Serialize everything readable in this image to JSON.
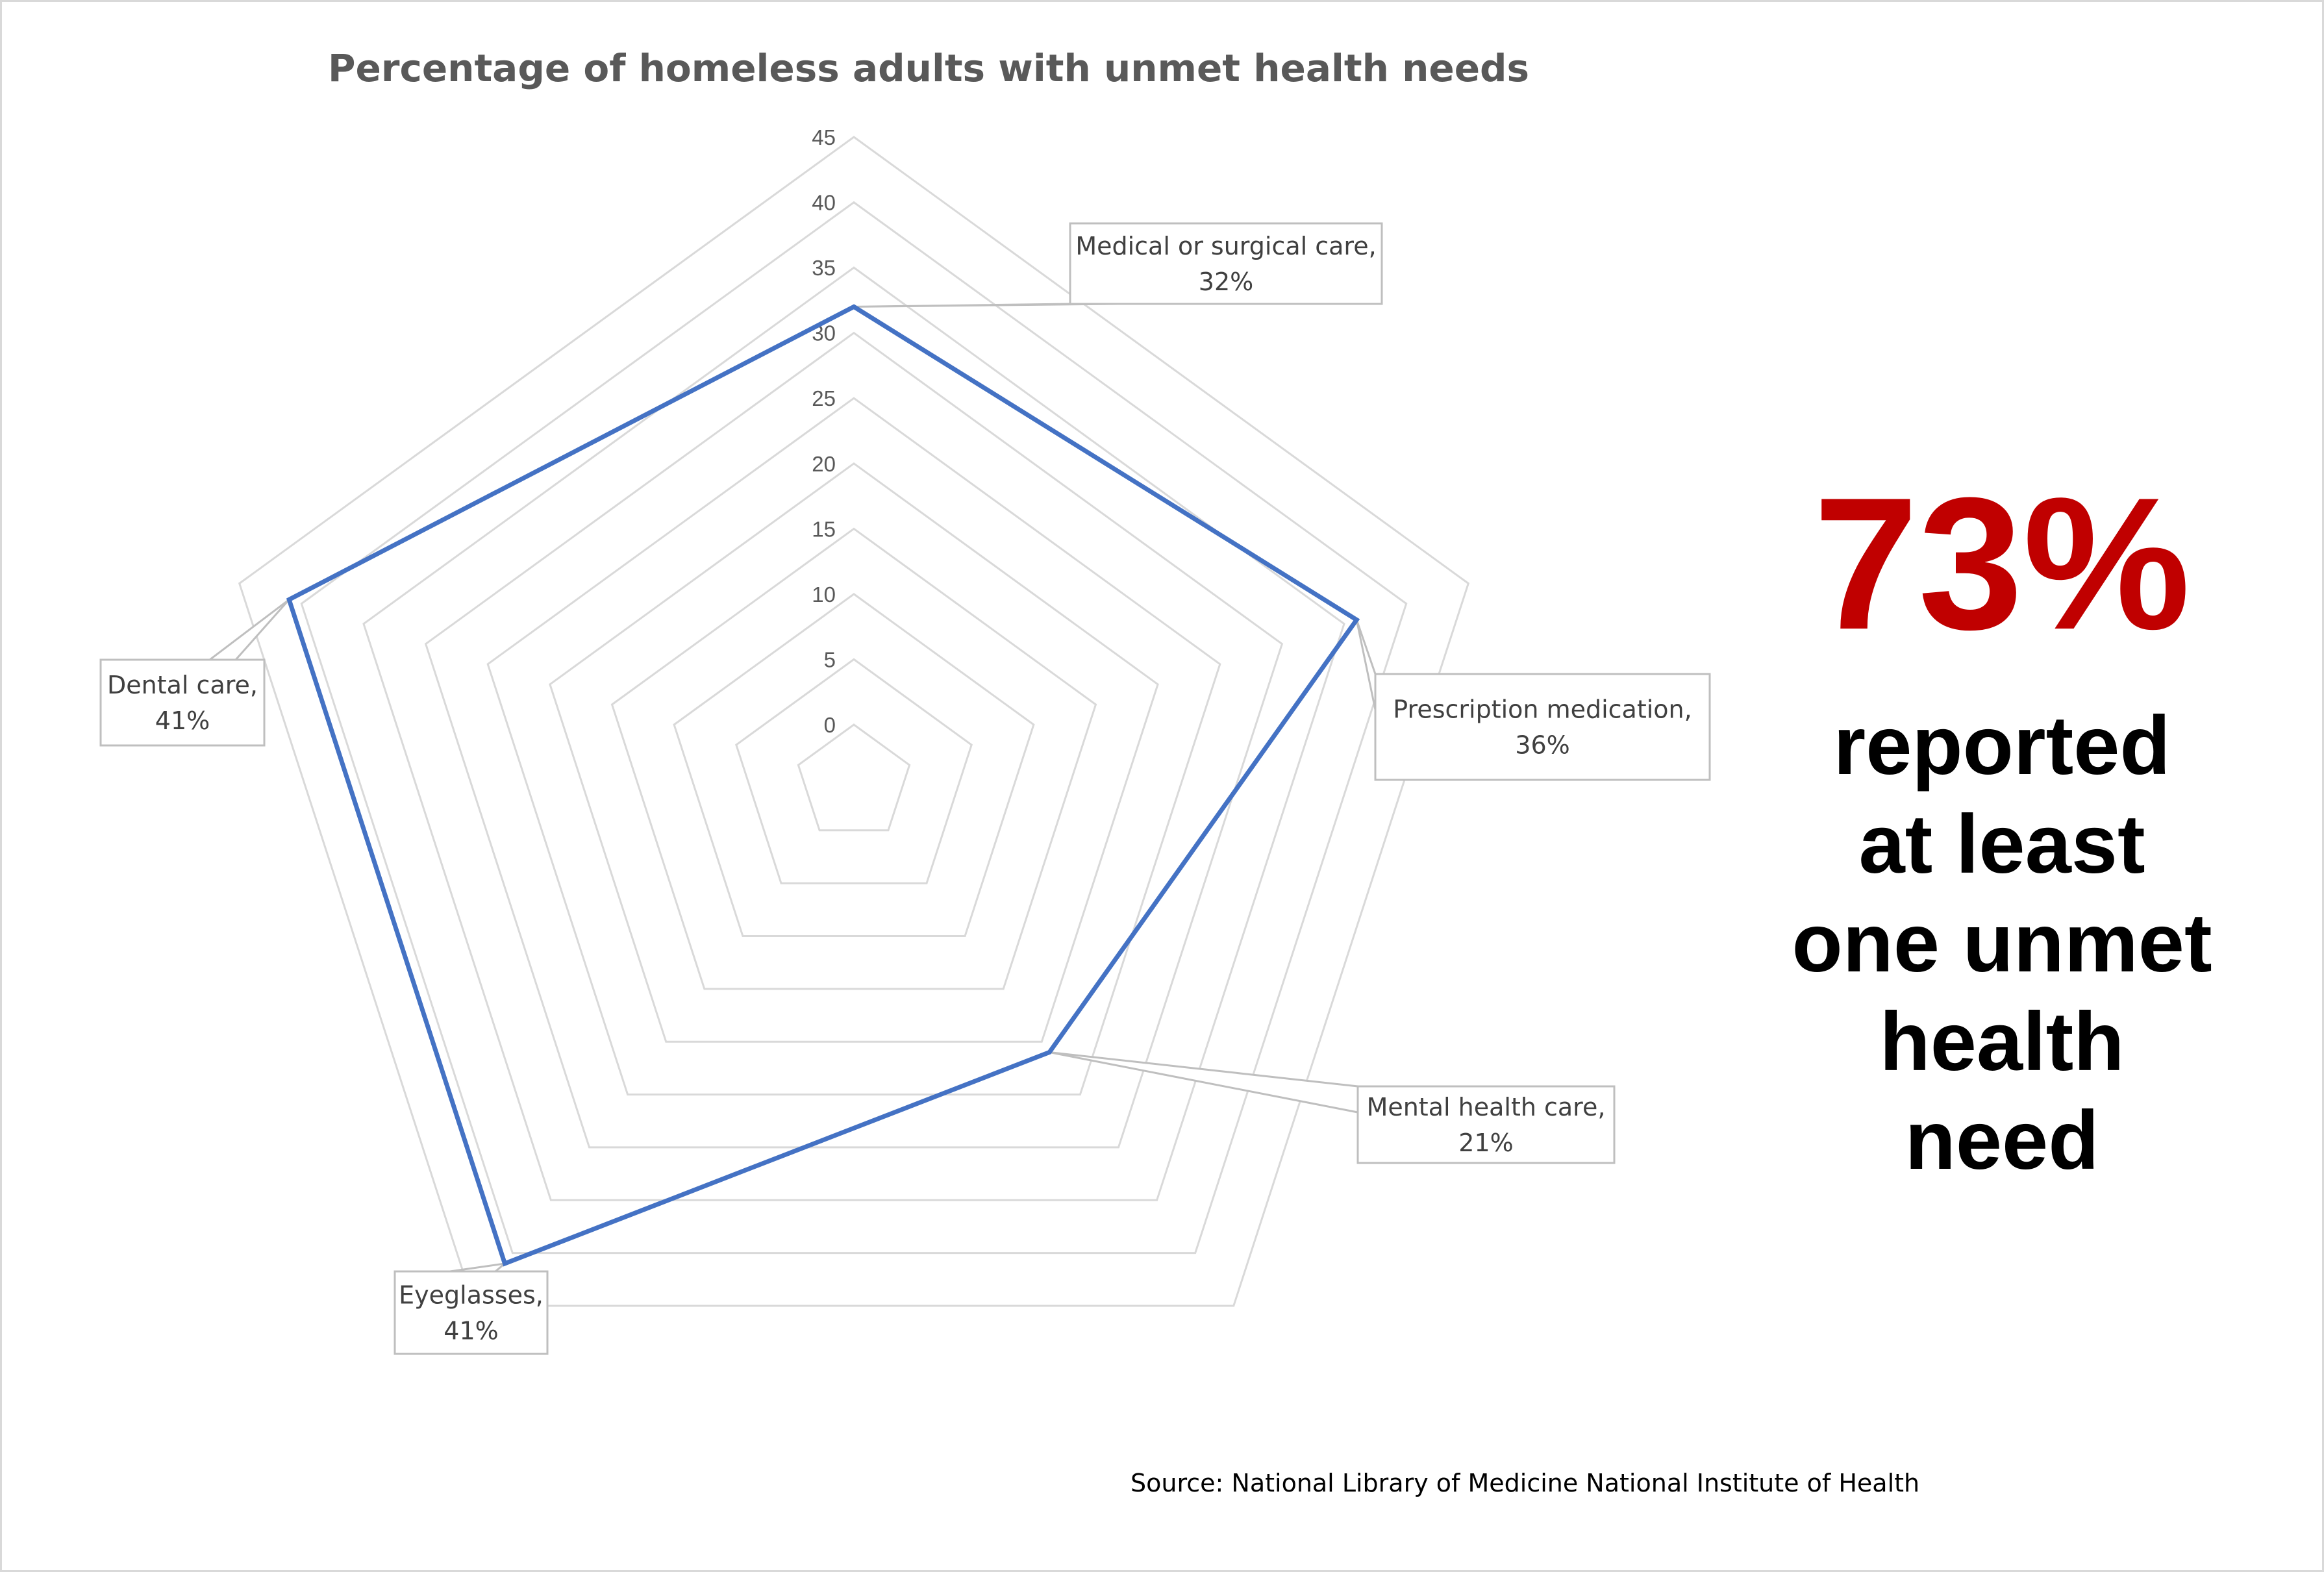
{
  "chart_data": {
    "type": "radar",
    "title": "Percentage of homeless adults with unmet health needs",
    "categories": [
      "Medical or surgical care",
      "Prescription medication",
      "Mental health care",
      "Eyeglasses",
      "Dental care"
    ],
    "values": [
      32,
      36,
      21,
      41,
      41
    ],
    "data_labels": [
      [
        "Medical or surgical care,",
        "32%"
      ],
      [
        "Prescription medication,",
        "36%"
      ],
      [
        "Mental health care,",
        "21%"
      ],
      [
        "Eyeglasses,",
        "41%"
      ],
      [
        "Dental care,",
        "41%"
      ]
    ],
    "r_ticks": [
      0,
      5,
      10,
      15,
      20,
      25,
      30,
      35,
      40,
      45
    ],
    "rlim": [
      0,
      45
    ],
    "colors": {
      "series": "#4472c4",
      "grid": "#d9d9d9"
    }
  },
  "highlight": {
    "value": "73%",
    "caption_lines": [
      "reported",
      "at least",
      "one unmet",
      "health",
      "need"
    ],
    "value_color": "#c00000"
  },
  "source": "Source: National Library of Medicine National Institute of Health"
}
